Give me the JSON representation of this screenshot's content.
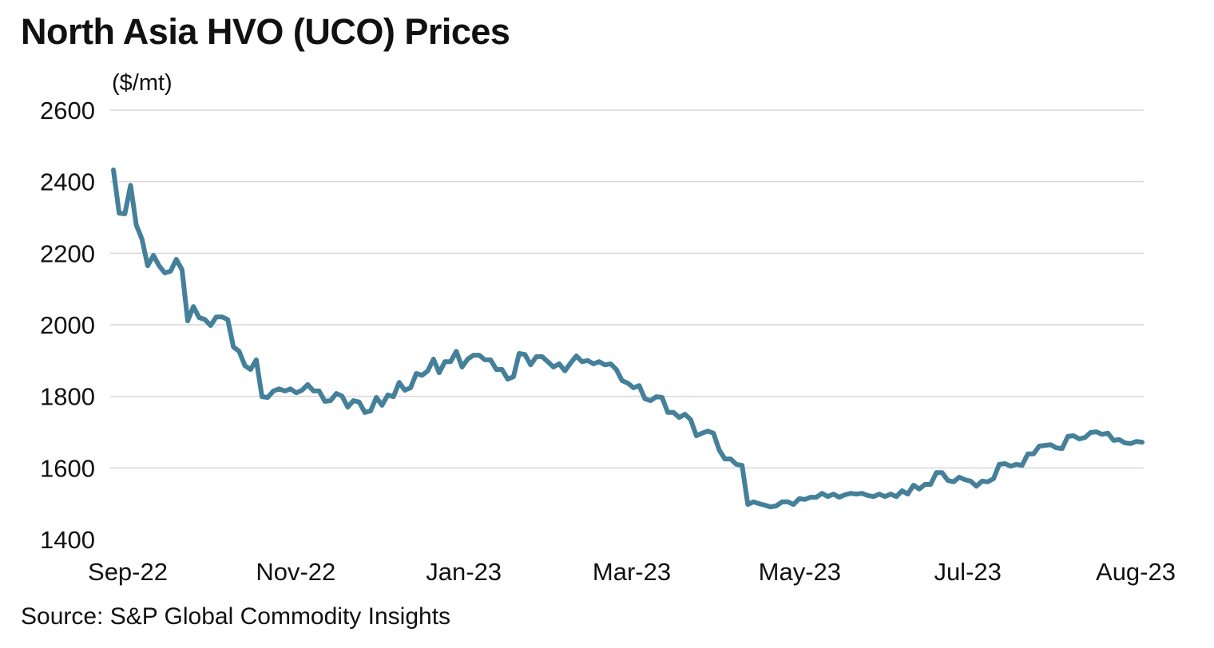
{
  "chart_data": {
    "type": "line",
    "title": "North Asia HVO (UCO) Prices",
    "ylabel": "($/mt)",
    "xlabel": "",
    "source": "Source: S&P Global Commodity Insights",
    "ylim": [
      1400,
      2600
    ],
    "yticks": [
      2600,
      2400,
      2200,
      2000,
      1800,
      1600,
      1400
    ],
    "xticks": [
      "Sep-22",
      "Nov-22",
      "Jan-23",
      "Mar-23",
      "May-23",
      "Jul-23",
      "Aug-23"
    ],
    "grid": true,
    "legend": "none",
    "color": "#44809a",
    "series": [
      {
        "values": [
          2433,
          2312,
          2310,
          2390,
          2279,
          2239,
          2165,
          2194,
          2165,
          2145,
          2150,
          2183,
          2154,
          2011,
          2051,
          2020,
          2015,
          1998,
          2022,
          2022,
          2015,
          1938,
          1926,
          1886,
          1875,
          1902,
          1799,
          1797,
          1815,
          1821,
          1815,
          1821,
          1810,
          1817,
          1833,
          1815,
          1815,
          1786,
          1788,
          1808,
          1801,
          1770,
          1788,
          1784,
          1755,
          1759,
          1797,
          1775,
          1804,
          1799,
          1839,
          1817,
          1824,
          1864,
          1859,
          1871,
          1904,
          1866,
          1897,
          1897,
          1926,
          1882,
          1904,
          1915,
          1915,
          1902,
          1902,
          1875,
          1875,
          1848,
          1855,
          1920,
          1917,
          1888,
          1911,
          1911,
          1897,
          1882,
          1891,
          1871,
          1893,
          1913,
          1897,
          1900,
          1891,
          1897,
          1888,
          1891,
          1875,
          1844,
          1837,
          1824,
          1830,
          1793,
          1788,
          1799,
          1797,
          1755,
          1755,
          1741,
          1750,
          1735,
          1690,
          1697,
          1703,
          1697,
          1650,
          1625,
          1625,
          1610,
          1607,
          1498,
          1505,
          1500,
          1496,
          1491,
          1494,
          1505,
          1505,
          1498,
          1514,
          1512,
          1518,
          1518,
          1529,
          1520,
          1527,
          1518,
          1525,
          1529,
          1527,
          1529,
          1523,
          1520,
          1527,
          1520,
          1527,
          1520,
          1536,
          1527,
          1552,
          1541,
          1554,
          1554,
          1587,
          1587,
          1565,
          1561,
          1574,
          1567,
          1563,
          1549,
          1563,
          1561,
          1570,
          1610,
          1612,
          1605,
          1610,
          1607,
          1639,
          1639,
          1661,
          1663,
          1665,
          1656,
          1654,
          1688,
          1690,
          1681,
          1685,
          1699,
          1701,
          1694,
          1697,
          1677,
          1679,
          1670,
          1668,
          1674,
          1672
        ]
      }
    ]
  }
}
